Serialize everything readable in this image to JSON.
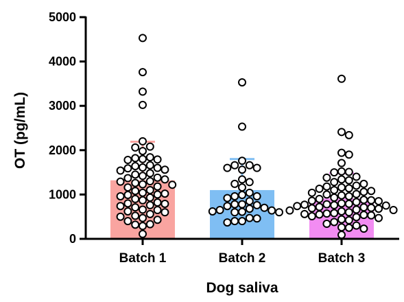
{
  "chart_data": {
    "type": "bar",
    "title": "",
    "xlabel": "Dog saliva",
    "ylabel": "OT (pg/mL)",
    "ylim": [
      0,
      5000
    ],
    "yticks": [
      0,
      1000,
      2000,
      3000,
      4000,
      5000
    ],
    "yticks_labels": [
      "0",
      "1000",
      "2000",
      "3000",
      "4000",
      "5000"
    ],
    "grid": false,
    "legend": "none",
    "error_bars": "mean + SD",
    "categories": [
      "Batch 1",
      "Batch 2",
      "Batch 3"
    ],
    "values": [
      1320,
      1100,
      910
    ],
    "error_upper": [
      2190,
      1800,
      1480
    ],
    "colors": [
      "#F9A4A0",
      "#7FBEF3",
      "#F28CF2"
    ],
    "points": [
      [
        4530,
        3760,
        3320,
        3020,
        2200,
        2080,
        2060,
        1980,
        1840,
        1820,
        1800,
        1790,
        1780,
        1660,
        1640,
        1610,
        1600,
        1590,
        1560,
        1540,
        1480,
        1450,
        1420,
        1380,
        1370,
        1340,
        1300,
        1290,
        1260,
        1230,
        1220,
        1180,
        1160,
        1100,
        1080,
        1040,
        1020,
        1000,
        990,
        960,
        930,
        900,
        870,
        820,
        800,
        790,
        760,
        740,
        710,
        660,
        650,
        620,
        600,
        560,
        520,
        500,
        470,
        430,
        400,
        330,
        320,
        290,
        110
      ],
      [
        3530,
        2530,
        1760,
        1660,
        1660,
        1600,
        1600,
        1560,
        1340,
        1280,
        1240,
        1160,
        1040,
        990,
        960,
        960,
        920,
        850,
        780,
        780,
        760,
        740,
        700,
        680,
        650,
        640,
        620,
        610,
        600,
        600,
        470,
        460,
        400,
        400,
        370
      ],
      [
        3610,
        2410,
        2340,
        1940,
        1900,
        1710,
        1520,
        1510,
        1500,
        1400,
        1380,
        1340,
        1320,
        1280,
        1240,
        1200,
        1180,
        1160,
        1140,
        1130,
        1100,
        1080,
        1060,
        1040,
        1010,
        1000,
        980,
        960,
        930,
        900,
        880,
        870,
        860,
        850,
        830,
        800,
        790,
        780,
        770,
        760,
        750,
        740,
        720,
        710,
        700,
        690,
        680,
        660,
        650,
        640,
        620,
        600,
        580,
        570,
        560,
        550,
        540,
        530,
        510,
        490,
        470,
        440,
        420,
        380,
        340,
        300,
        260,
        250,
        230,
        90
      ]
    ]
  }
}
